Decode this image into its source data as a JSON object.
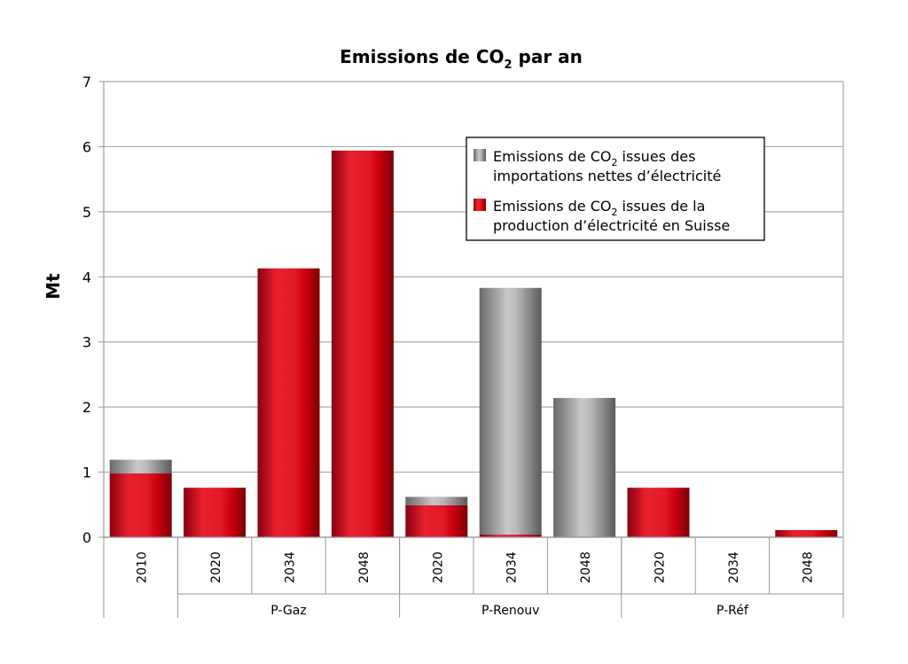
{
  "chart_data": {
    "type": "bar",
    "stacked": true,
    "title": "Emissions de CO2 par an",
    "ylabel": "Mt",
    "xlabel": "",
    "ylim": [
      0,
      7
    ],
    "yticks": [
      0,
      1,
      2,
      3,
      4,
      5,
      6,
      7
    ],
    "grid": true,
    "legend_position": "top-right",
    "categories": [
      "2010",
      "2020",
      "2034",
      "2048",
      "2020",
      "2034",
      "2048",
      "2020",
      "2034",
      "2048"
    ],
    "groups": [
      {
        "label": "",
        "span": 1
      },
      {
        "label": "P-Gaz",
        "span": 3
      },
      {
        "label": "P-Renouv",
        "span": 3
      },
      {
        "label": "P-Réf",
        "span": 3
      }
    ],
    "series": [
      {
        "name": "Emissions de CO2 issues de la production d’électricité en Suisse",
        "color": "#e01020",
        "values": [
          0.98,
          0.76,
          4.13,
          5.94,
          0.49,
          0.04,
          0,
          0.76,
          0,
          0.11
        ]
      },
      {
        "name": "Emissions de CO2 issues des importations nettes d’électricité",
        "color": "#a0a0a0",
        "values": [
          0.21,
          0,
          0,
          0,
          0.13,
          3.79,
          2.14,
          0,
          0,
          0
        ]
      }
    ],
    "legend": [
      {
        "line1": "Emissions de CO",
        "sub": "2",
        "line1b": " issues des",
        "line2": "importations nettes d’électricité",
        "color": "#a0a0a0"
      },
      {
        "line1": "Emissions de CO",
        "sub": "2",
        "line1b": " issues de la",
        "line2": "production d’électricité en Suisse",
        "color": "#e01020"
      }
    ],
    "title_parts": {
      "main": "Emissions de CO",
      "sub": "2",
      "rest": " par an"
    }
  }
}
